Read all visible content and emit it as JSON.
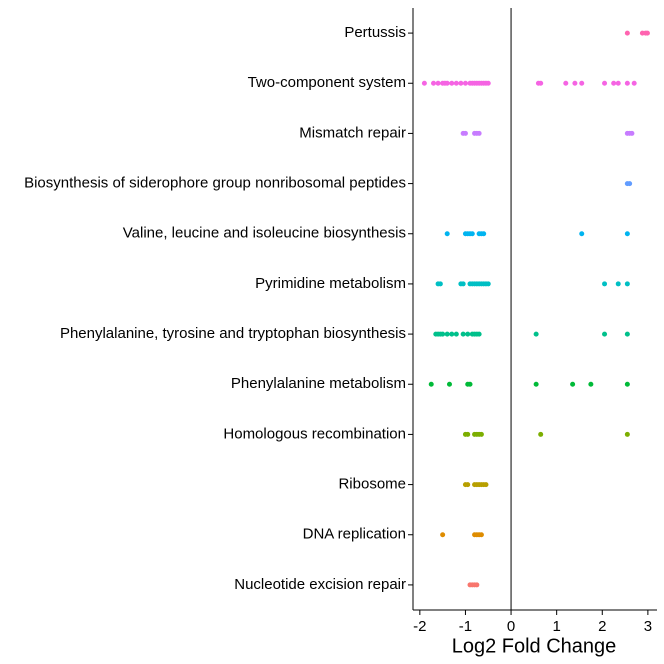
{
  "chart_data": {
    "type": "strip",
    "x_label": "Log2 Fold Change",
    "categories": [
      "Pertussis",
      "Two-component system",
      "Mismatch repair",
      "Biosynthesis of siderophore group nonribosomal peptides",
      "Valine, leucine and isoleucine biosynthesis",
      "Pyrimidine metabolism",
      "Phenylalanine, tyrosine and tryptophan biosynthesis",
      "Phenylalanine metabolism",
      "Homologous recombination",
      "Ribosome",
      "DNA replication",
      "Nucleotide excision repair"
    ],
    "colors": [
      "#FF64B0",
      "#F564E3",
      "#C77CFF",
      "#619CFF",
      "#00B4F0",
      "#00BFC4",
      "#00C08B",
      "#00BA38",
      "#7CAE00",
      "#B79F00",
      "#DE8C00",
      "#F8766D"
    ],
    "values": [
      [
        2.55,
        2.88,
        2.95,
        2.99
      ],
      [
        -1.9,
        -1.7,
        -1.6,
        -1.5,
        -1.45,
        -1.4,
        -1.3,
        -1.2,
        -1.1,
        -1.0,
        -0.9,
        -0.85,
        -0.8,
        -0.75,
        -0.7,
        -0.65,
        -0.6,
        -0.55,
        -0.5,
        0.6,
        0.65,
        1.2,
        1.4,
        1.55,
        2.05,
        2.25,
        2.35,
        2.55,
        2.7
      ],
      [
        -1.05,
        -1.0,
        -0.8,
        -0.75,
        -0.7,
        2.55,
        2.6,
        2.65
      ],
      [
        2.55,
        2.6
      ],
      [
        -1.4,
        -1.0,
        -0.95,
        -0.9,
        -0.85,
        -0.7,
        -0.65,
        -0.6,
        1.55,
        2.55
      ],
      [
        -1.6,
        -1.55,
        -1.1,
        -1.05,
        -0.9,
        -0.85,
        -0.8,
        -0.75,
        -0.7,
        -0.65,
        -0.6,
        -0.55,
        -0.5,
        2.05,
        2.35,
        2.55
      ],
      [
        -1.65,
        -1.6,
        -1.55,
        -1.5,
        -1.4,
        -1.3,
        -1.2,
        -1.05,
        -0.95,
        -0.85,
        -0.8,
        -0.75,
        -0.7,
        0.55,
        2.05,
        2.55
      ],
      [
        -1.75,
        -1.35,
        -0.95,
        -0.9,
        0.55,
        1.35,
        1.75,
        2.55
      ],
      [
        -1.0,
        -0.95,
        -0.8,
        -0.75,
        -0.7,
        -0.65,
        0.65,
        2.55
      ],
      [
        -1.0,
        -0.95,
        -0.8,
        -0.75,
        -0.7,
        -0.65,
        -0.6,
        -0.55
      ],
      [
        -1.5,
        -0.8,
        -0.75,
        -0.7,
        -0.65
      ],
      [
        -0.9,
        -0.85,
        -0.8,
        -0.75
      ]
    ],
    "xlim": [
      -2.15,
      3.2
    ],
    "xticks": [
      -2,
      -1,
      0,
      1,
      2,
      3
    ],
    "zero_line": 0
  }
}
